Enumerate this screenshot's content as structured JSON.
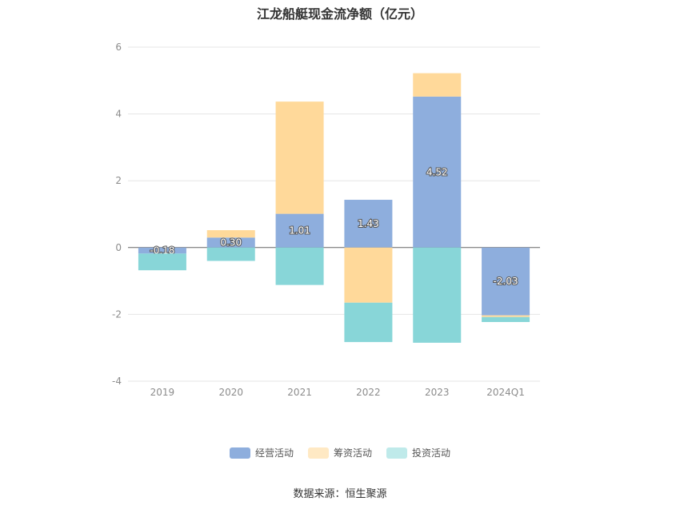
{
  "chart_data": {
    "type": "bar",
    "stacked": true,
    "title": "江龙船艇现金流净额（亿元）",
    "categories": [
      "2019",
      "2020",
      "2021",
      "2022",
      "2023",
      "2024Q1"
    ],
    "series": [
      {
        "name": "经营活动",
        "color": "#8eaedd",
        "values": [
          -0.18,
          0.3,
          1.01,
          1.43,
          4.52,
          -2.03
        ],
        "labels": [
          "-0.18",
          "0.30",
          "1.01",
          "1.43",
          "4.52",
          "-2.03"
        ]
      },
      {
        "name": "筹资活动",
        "color": "#ffd99a",
        "values": [
          0.0,
          0.22,
          3.36,
          -1.65,
          0.7,
          -0.05
        ]
      },
      {
        "name": "投资活动",
        "color": "#88d6d8",
        "values": [
          -0.5,
          -0.4,
          -1.12,
          -1.18,
          -2.85,
          -0.15
        ]
      }
    ],
    "yticks": [
      -4,
      -2,
      0,
      2,
      4,
      6
    ],
    "ylim": [
      -4,
      6
    ],
    "grid": true,
    "legend_position": "bottom"
  },
  "legend_colors": [
    "#8eaedd",
    "#ffe9c4",
    "#bfeaea"
  ],
  "source": "数据来源：恒生聚源"
}
